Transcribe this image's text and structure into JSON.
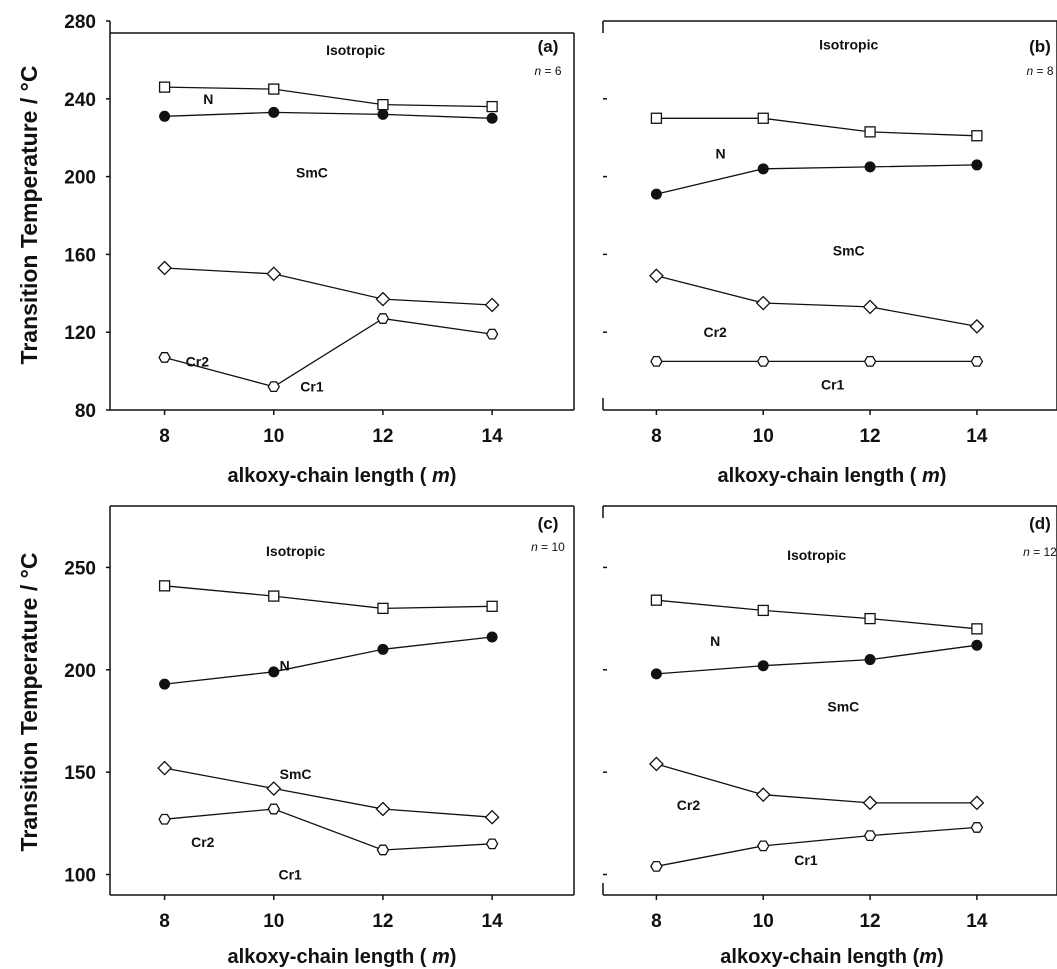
{
  "chart_data": [
    {
      "type": "line",
      "panel_label": "(a)",
      "n_label": "n = 6",
      "xlabel": "alkoxy-chain length ( m)",
      "ylabel": "Transition Temperature / °C",
      "x": [
        8,
        10,
        12,
        14
      ],
      "xlim": [
        7,
        15.5
      ],
      "ylim": [
        80,
        280
      ],
      "yticks": [
        "280",
        "240",
        "200",
        "160",
        "120",
        "80"
      ],
      "ytick_values": [
        280,
        240,
        200,
        160,
        120,
        80
      ],
      "xticks": [
        "8",
        "10",
        "12",
        "14"
      ],
      "series": [
        {
          "marker": "square",
          "values": [
            246,
            245,
            237,
            236
          ]
        },
        {
          "marker": "filled-circle",
          "values": [
            231,
            233,
            232,
            230
          ]
        },
        {
          "marker": "diamond",
          "values": [
            153,
            150,
            137,
            134
          ]
        },
        {
          "marker": "hexagon",
          "values": [
            107,
            92,
            127,
            119
          ]
        }
      ],
      "annotations": [
        {
          "text": "Isotropic",
          "x": 11.5,
          "y": 265
        },
        {
          "text": "N",
          "x": 8.8,
          "y": 240
        },
        {
          "text": "SmC",
          "x": 10.7,
          "y": 202
        },
        {
          "text": "Cr2",
          "x": 8.6,
          "y": 105
        },
        {
          "text": "Cr1",
          "x": 10.7,
          "y": 92
        }
      ]
    },
    {
      "type": "line",
      "panel_label": "(b)",
      "n_label": "n = 8",
      "xlabel": "alkoxy-chain length ( m)",
      "x": [
        8,
        10,
        12,
        14
      ],
      "xlim": [
        7,
        15.5
      ],
      "ylim": [
        80,
        280
      ],
      "yticks": [],
      "ytick_values": [
        240,
        200,
        160,
        120
      ],
      "xticks": [
        "8",
        "10",
        "12",
        "14"
      ],
      "series": [
        {
          "marker": "square",
          "values": [
            230,
            230,
            223,
            221
          ]
        },
        {
          "marker": "filled-circle",
          "values": [
            191,
            204,
            205,
            206
          ]
        },
        {
          "marker": "diamond",
          "values": [
            149,
            135,
            133,
            123
          ]
        },
        {
          "marker": "hexagon",
          "values": [
            105,
            105,
            105,
            105
          ]
        }
      ],
      "annotations": [
        {
          "text": "Isotropic",
          "x": 11.6,
          "y": 268
        },
        {
          "text": "N",
          "x": 9.2,
          "y": 212
        },
        {
          "text": "SmC",
          "x": 11.6,
          "y": 162
        },
        {
          "text": "Cr2",
          "x": 9.1,
          "y": 120
        },
        {
          "text": "Cr1",
          "x": 11.3,
          "y": 93
        }
      ]
    },
    {
      "type": "line",
      "panel_label": "(c)",
      "n_label": "n = 10",
      "xlabel": "alkoxy-chain length ( m)",
      "ylabel": "Transition Temperature / °C",
      "x": [
        8,
        10,
        12,
        14
      ],
      "xlim": [
        7,
        15.5
      ],
      "ylim": [
        90,
        280
      ],
      "yticks": [
        "250",
        "200",
        "150",
        "100"
      ],
      "ytick_values": [
        250,
        200,
        150,
        100
      ],
      "xticks": [
        "8",
        "10",
        "12",
        "14"
      ],
      "series": [
        {
          "marker": "square",
          "values": [
            241,
            236,
            230,
            231
          ]
        },
        {
          "marker": "filled-circle",
          "values": [
            193,
            199,
            210,
            216
          ]
        },
        {
          "marker": "diamond",
          "values": [
            152,
            142,
            132,
            128
          ]
        },
        {
          "marker": "hexagon",
          "values": [
            127,
            132,
            112,
            115
          ]
        }
      ],
      "annotations": [
        {
          "text": "Isotropic",
          "x": 10.4,
          "y": 258
        },
        {
          "text": "N",
          "x": 10.2,
          "y": 202
        },
        {
          "text": "SmC",
          "x": 10.4,
          "y": 149
        },
        {
          "text": "Cr2",
          "x": 8.7,
          "y": 116
        },
        {
          "text": "Cr1",
          "x": 10.3,
          "y": 100
        }
      ]
    },
    {
      "type": "line",
      "panel_label": "(d)",
      "n_label": "n = 12",
      "xlabel": "alkoxy-chain length (m)",
      "x": [
        8,
        10,
        12,
        14
      ],
      "xlim": [
        7,
        15.5
      ],
      "ylim": [
        90,
        280
      ],
      "yticks": [],
      "ytick_values": [
        250,
        200,
        150,
        100
      ],
      "xticks": [
        "8",
        "10",
        "12",
        "14"
      ],
      "series": [
        {
          "marker": "square",
          "values": [
            234,
            229,
            225,
            220
          ]
        },
        {
          "marker": "filled-circle",
          "values": [
            198,
            202,
            205,
            212
          ]
        },
        {
          "marker": "diamond",
          "values": [
            154,
            139,
            135,
            135
          ]
        },
        {
          "marker": "hexagon",
          "values": [
            104,
            114,
            119,
            123
          ]
        }
      ],
      "annotations": [
        {
          "text": "Isotropic",
          "x": 11.0,
          "y": 256
        },
        {
          "text": "N",
          "x": 9.1,
          "y": 214
        },
        {
          "text": "SmC",
          "x": 11.5,
          "y": 182
        },
        {
          "text": "Cr2",
          "x": 8.6,
          "y": 134
        },
        {
          "text": "Cr1",
          "x": 10.8,
          "y": 107
        }
      ]
    }
  ]
}
